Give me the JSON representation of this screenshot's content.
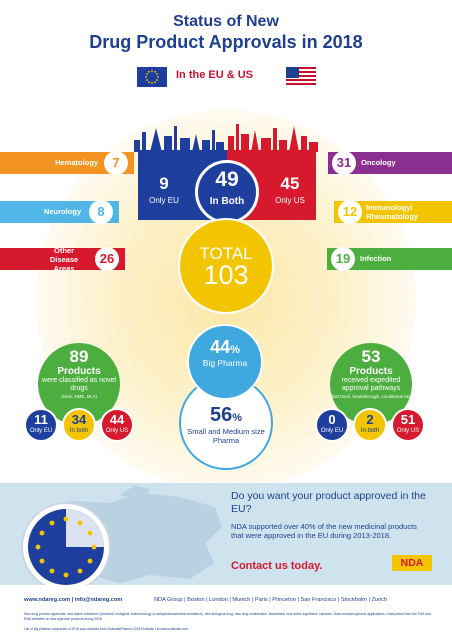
{
  "title": {
    "line1": "Status of New",
    "line2": "Drug Product Approvals in 2018"
  },
  "subtitle": "In the EU & US",
  "colors": {
    "navy": "#1f3f8f",
    "eu_blue": "#1f3f9f",
    "red": "#d7192e",
    "yellow": "#f3c400",
    "green": "#4cae3f",
    "light_blue": "#3fa8df",
    "orange": "#f39322",
    "purple": "#8a2f8f"
  },
  "center": {
    "eu_only": {
      "value": "9",
      "label": "Only EU"
    },
    "both": {
      "value": "49",
      "label": "In Both"
    },
    "us_only": {
      "value": "45",
      "label": "Only US"
    }
  },
  "total": {
    "label": "TOTAL",
    "value": "103"
  },
  "left_areas": [
    {
      "label": "Hematology",
      "value": "7",
      "color": "#f39322"
    },
    {
      "label": "Neurology",
      "value": "8",
      "color": "#4fb6e6"
    },
    {
      "label": "Other Disease Areas",
      "value": "26",
      "color": "#d7192e"
    }
  ],
  "right_areas": [
    {
      "label": "Oncology",
      "value": "31",
      "color": "#8a2f8f"
    },
    {
      "label": "Immunology/ Rheumatology",
      "value": "12",
      "color": "#f3c400"
    },
    {
      "label": "Infection",
      "value": "19",
      "color": "#4cae3f"
    }
  ],
  "novel": {
    "value": "89",
    "products": "Products",
    "desc": "were classified as novel drugs",
    "sub": "(NAS, NME, BLA)",
    "eu_only": {
      "value": "11",
      "label": "Only EU"
    },
    "both": {
      "value": "34",
      "label": "In both"
    },
    "us_only": {
      "value": "44",
      "label": "Only US"
    }
  },
  "pharma": {
    "big": {
      "value": "44",
      "unit": "%",
      "label": "Big Pharma"
    },
    "small": {
      "value": "56",
      "unit": "%",
      "label": "Small and Medium size Pharma"
    }
  },
  "expedited": {
    "value": "53",
    "products": "Products",
    "desc": "received expedited approval pathways",
    "sub": "(fast track, breakthrough, conditional etc)",
    "eu_only": {
      "value": "0",
      "label": "Only EU"
    },
    "both": {
      "value": "2",
      "label": "In both"
    },
    "us_only": {
      "value": "51",
      "label": "Only US"
    }
  },
  "promo": {
    "heading": "Do you want your product approved in the EU?",
    "body": "NDA supported over 40% of the new medicinal products that were approved in the EU during 2013-2018.",
    "cta": "Contact us today.",
    "logo": "NDA"
  },
  "footer": {
    "links": "www.ndareg.com | info@ndareg.com",
    "offices": "NDA Group | Boston | London | Munich | Paris | Princeton | San Francisco | Stockholm | Zurich",
    "note1": "New drug product approvals: new active substance (chemical, biological, biotechnology or radiopharmaceutical substance), new biological drug, new drug combination, biosimilars, new active ingredient, vaccines. Data excludes generic applications. Data picked from the FDA and EMA websites on new approval products during 2018.",
    "note2": "List of big pharma companies in 2018 was obtained from EvaluatePharma 2018 Evaluate Ltd www.evaluate.com"
  }
}
